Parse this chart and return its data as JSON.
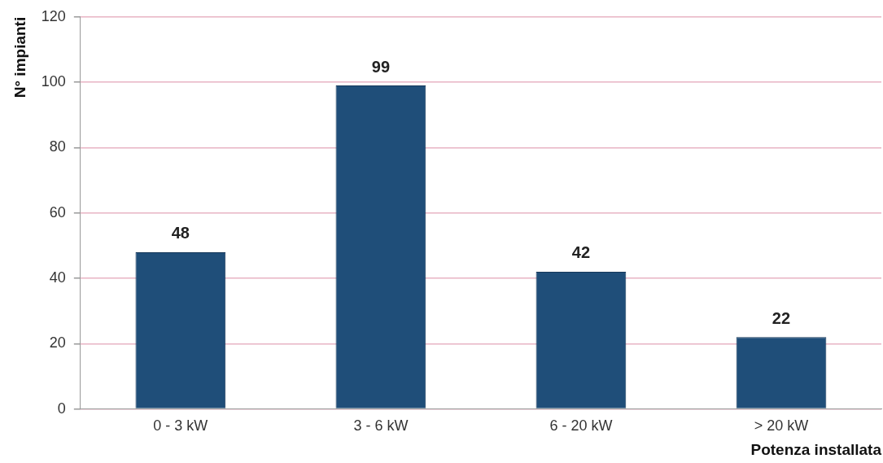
{
  "chart_data": {
    "type": "bar",
    "xlabel": "Potenza installata",
    "ylabel": "N° impianti",
    "categories": [
      "0 - 3 kW",
      "3 - 6 kW",
      "6 - 20 kW",
      "> 20 kW"
    ],
    "values": [
      48,
      99,
      42,
      22
    ],
    "color": "#1f4e79",
    "ylim": [
      0,
      120
    ],
    "yticks": [
      0,
      20,
      40,
      60,
      80,
      100,
      120
    ],
    "grid": "y",
    "data_labels": true,
    "legend": false
  }
}
